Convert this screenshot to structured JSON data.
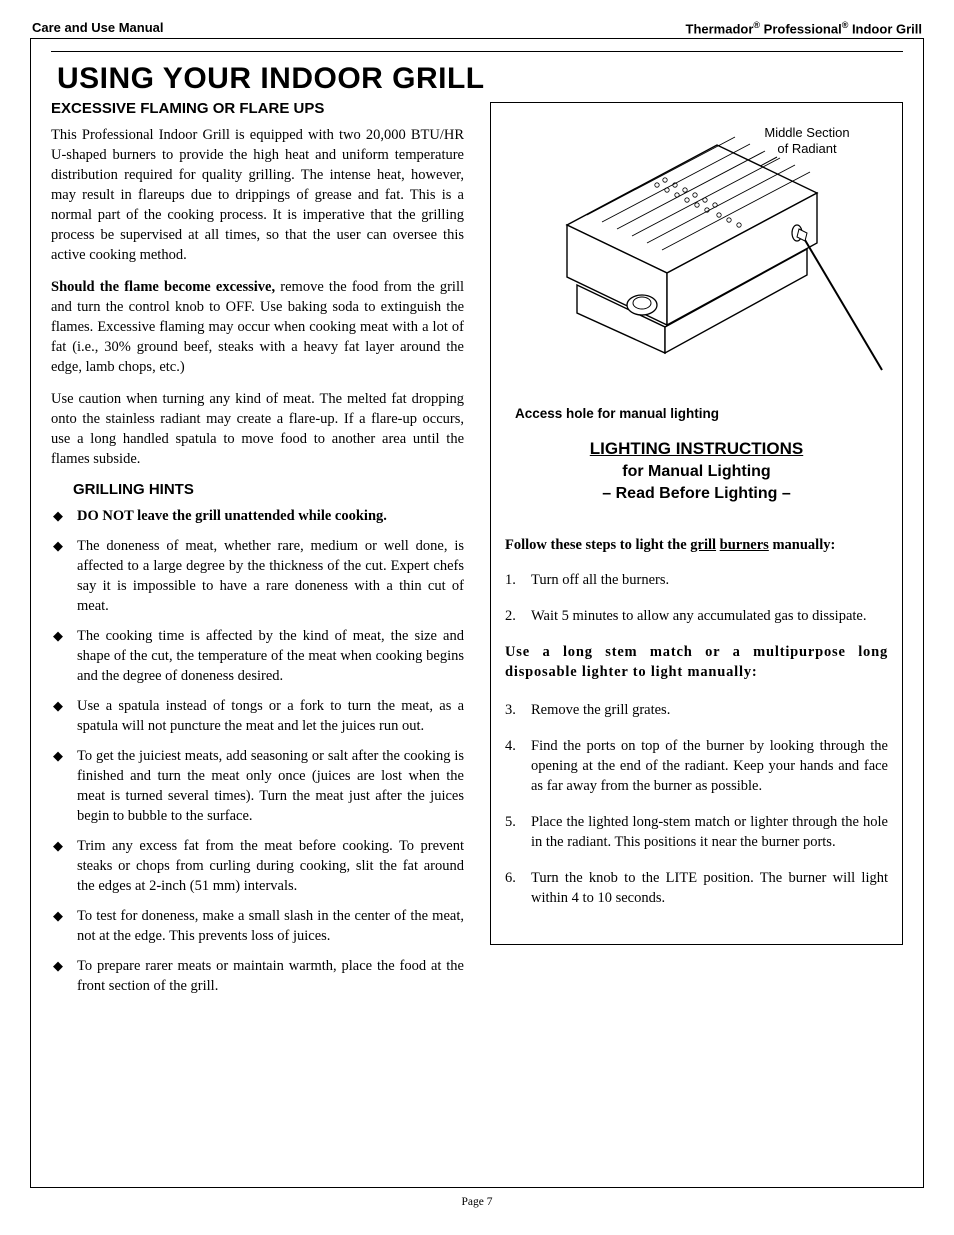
{
  "header": {
    "left": "Care and Use Manual",
    "right_html": "Thermador<sup>®</sup> Professional<sup>®</sup> Indoor Grill"
  },
  "title": "USING YOUR INDOOR GRILL",
  "left": {
    "subhead1": "EXCESSIVE FLAMING OR FLARE UPS",
    "p1": "This Professional Indoor Grill is equipped with two 20,000 BTU/HR U-shaped burners to provide the high heat and uniform temperature distribution required for quality grilling. The intense heat, however, may result in flareups due to drippings of grease and fat. This is a normal part of the cooking process. It is imperative that the grilling process be supervised at all times, so that the user can oversee this active cooking method.",
    "p2_bold": "Should the flame become excessive,",
    "p2_rest": " remove the food from the grill and turn the control knob to OFF. Use baking soda to extinguish the flames. Excessive flaming may occur when cooking meat with a lot of fat (i.e., 30% ground beef, steaks with a heavy fat layer around the edge, lamb chops, etc.)",
    "p3": "Use caution when turning any kind of meat. The melted fat dropping onto the stainless radiant may create a flare-up. If a flare-up occurs, use a long handled spatula to move food to another area until the flames subside.",
    "subhead2": "GRILLING HINTS",
    "hints": [
      {
        "bold": "DO NOT leave the grill unattended while cooking."
      },
      {
        "text": "The doneness of meat, whether rare, medium or well done, is affected to a large degree by the thickness of the cut. Expert chefs say it is impossible to have a rare doneness with a thin cut of meat."
      },
      {
        "text": "The cooking time is affected by the kind of meat, the size and shape of the cut, the temperature of the meat when cooking begins and the degree of doneness desired."
      },
      {
        "text": "Use a spatula instead of tongs or a fork to turn the meat, as a spatula will not puncture the meat and let the juices run out."
      },
      {
        "text": "To get the juiciest meats, add seasoning or salt after the cooking is finished and turn the meat only once (juices are lost when the meat is turned several times). Turn the meat just after the juices begin to bubble to the surface."
      },
      {
        "text": "Trim any excess fat from the meat before cooking. To prevent steaks or chops from curling during cooking, slit the fat around the edges at 2-inch (51 mm) intervals."
      },
      {
        "text": "To test for doneness, make a small slash in the center of the meat, not at the edge. This prevents loss of juices."
      },
      {
        "text": "To prepare rarer meats or maintain warmth, place the food at the front section of the grill."
      }
    ]
  },
  "right": {
    "fig_label1": "Middle Section",
    "fig_label2": "of Radiant",
    "fig_caption": "Access hole for manual lighting",
    "light_title": "LIGHTING INSTRUCTIONS",
    "light_sub1": "for Manual Lighting",
    "light_sub2": "– Read Before Lighting –",
    "follow_pre": "Follow these steps to light the ",
    "follow_u1": "grill",
    "follow_mid": " ",
    "follow_u2": "burners",
    "follow_post": " manually:",
    "steps_a": [
      "Turn off all the burners.",
      "Wait 5 minutes to allow any accumulated gas to dissipate."
    ],
    "mid_bold": "Use a long stem match or a multipurpose long disposable lighter to light manually:",
    "steps_b": [
      "Remove the grill grates.",
      "Find the ports on top of the burner by looking through the opening at the end of the radiant. Keep your hands and face as far away from the burner as possible.",
      "Place the lighted long-stem match or lighter through the hole in the radiant. This positions it near the burner ports.",
      "Turn the knob to the LITE position. The burner will light within 4 to 10 seconds."
    ]
  },
  "page_num": "Page 7"
}
